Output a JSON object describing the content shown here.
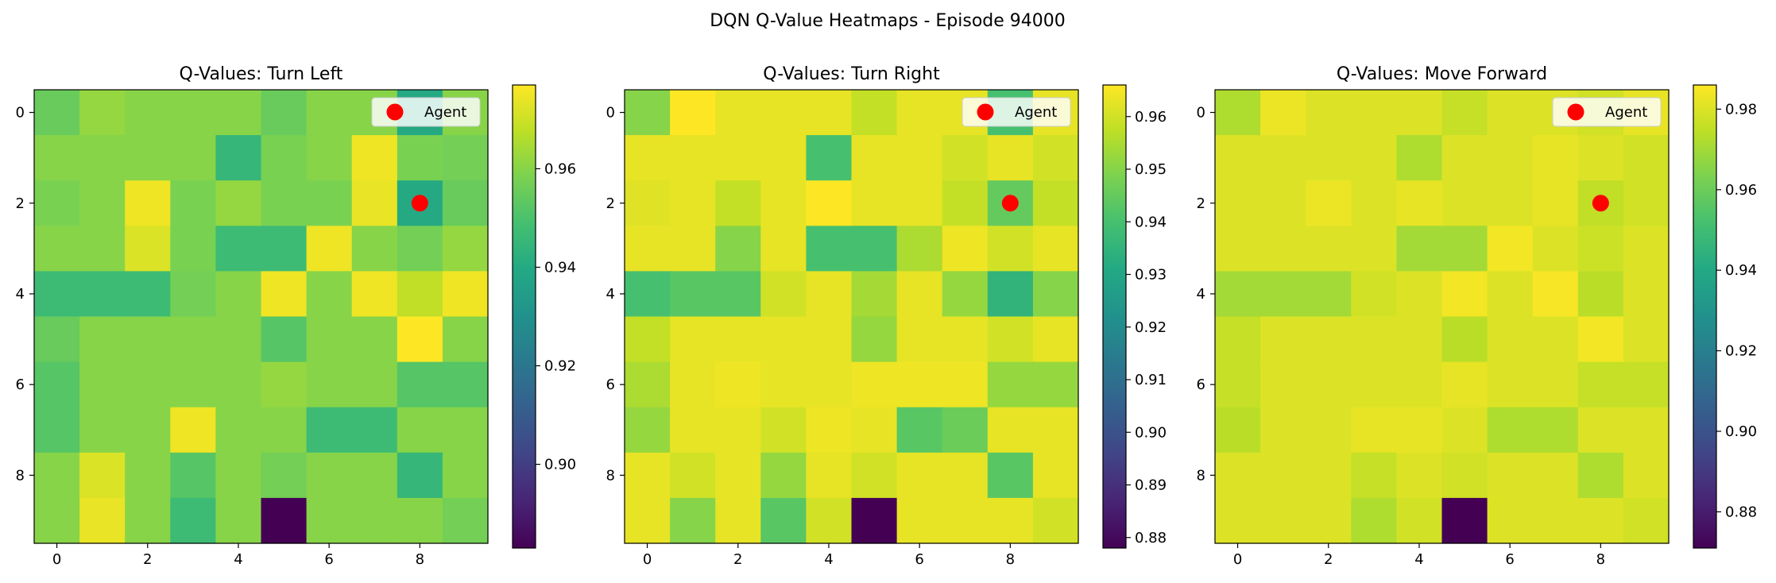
{
  "figure": {
    "suptitle": "DQN Q-Value Heatmaps - Episode 94000",
    "colormap": "viridis",
    "agent_color": "#ff0000",
    "tick_color": "#000000"
  },
  "chart_data": [
    {
      "type": "heatmap",
      "title": "Q-Values: Turn Left",
      "legend": {
        "label": "Agent",
        "placement": "top-right"
      },
      "agent": {
        "x": 8,
        "y": 2
      },
      "xticks": [
        0,
        2,
        4,
        6,
        8
      ],
      "yticks": [
        0,
        2,
        4,
        6,
        8
      ],
      "colorbar": {
        "min": 0.883,
        "max": 0.977,
        "ticks": [
          0.9,
          0.92,
          0.94,
          0.96
        ]
      },
      "grid": false,
      "values": [
        [
          0.955,
          0.962,
          0.96,
          0.96,
          0.96,
          0.955,
          0.96,
          0.96,
          0.94,
          0.96
        ],
        [
          0.96,
          0.96,
          0.96,
          0.96,
          0.945,
          0.958,
          0.96,
          0.975,
          0.958,
          0.957
        ],
        [
          0.958,
          0.96,
          0.975,
          0.958,
          0.962,
          0.958,
          0.958,
          0.974,
          0.94,
          0.955
        ],
        [
          0.96,
          0.96,
          0.972,
          0.958,
          0.947,
          0.947,
          0.975,
          0.96,
          0.957,
          0.962
        ],
        [
          0.947,
          0.947,
          0.947,
          0.957,
          0.96,
          0.975,
          0.96,
          0.975,
          0.968,
          0.975
        ],
        [
          0.955,
          0.96,
          0.96,
          0.96,
          0.96,
          0.952,
          0.96,
          0.96,
          0.977,
          0.96
        ],
        [
          0.952,
          0.96,
          0.96,
          0.96,
          0.96,
          0.962,
          0.96,
          0.96,
          0.952,
          0.952
        ],
        [
          0.952,
          0.96,
          0.96,
          0.975,
          0.96,
          0.96,
          0.947,
          0.947,
          0.96,
          0.96
        ],
        [
          0.96,
          0.972,
          0.96,
          0.952,
          0.96,
          0.957,
          0.96,
          0.96,
          0.945,
          0.96
        ],
        [
          0.96,
          0.974,
          0.96,
          0.947,
          0.96,
          0.883,
          0.96,
          0.96,
          0.96,
          0.957
        ]
      ]
    },
    {
      "type": "heatmap",
      "title": "Q-Values: Turn Right",
      "legend": {
        "label": "Agent",
        "placement": "top-right"
      },
      "agent": {
        "x": 8,
        "y": 2
      },
      "xticks": [
        0,
        2,
        4,
        6,
        8
      ],
      "yticks": [
        0,
        2,
        4,
        6,
        8
      ],
      "colorbar": {
        "min": 0.878,
        "max": 0.966,
        "ticks": [
          0.88,
          0.89,
          0.9,
          0.91,
          0.92,
          0.93,
          0.94,
          0.95,
          0.96
        ]
      },
      "grid": false,
      "values": [
        [
          0.95,
          0.966,
          0.963,
          0.963,
          0.963,
          0.958,
          0.963,
          0.963,
          0.94,
          0.963
        ],
        [
          0.963,
          0.963,
          0.963,
          0.963,
          0.94,
          0.963,
          0.963,
          0.96,
          0.963,
          0.96
        ],
        [
          0.962,
          0.963,
          0.958,
          0.963,
          0.966,
          0.963,
          0.963,
          0.958,
          0.945,
          0.958
        ],
        [
          0.963,
          0.963,
          0.95,
          0.963,
          0.94,
          0.94,
          0.955,
          0.964,
          0.96,
          0.963
        ],
        [
          0.94,
          0.943,
          0.943,
          0.96,
          0.963,
          0.954,
          0.963,
          0.952,
          0.935,
          0.95
        ],
        [
          0.958,
          0.963,
          0.963,
          0.963,
          0.963,
          0.952,
          0.963,
          0.963,
          0.96,
          0.963
        ],
        [
          0.955,
          0.963,
          0.964,
          0.963,
          0.963,
          0.964,
          0.964,
          0.964,
          0.952,
          0.952
        ],
        [
          0.952,
          0.963,
          0.963,
          0.96,
          0.964,
          0.963,
          0.943,
          0.946,
          0.963,
          0.963
        ],
        [
          0.963,
          0.96,
          0.963,
          0.952,
          0.963,
          0.96,
          0.963,
          0.963,
          0.943,
          0.963
        ],
        [
          0.963,
          0.95,
          0.963,
          0.943,
          0.96,
          0.878,
          0.963,
          0.963,
          0.963,
          0.96
        ]
      ]
    },
    {
      "type": "heatmap",
      "title": "Q-Values: Move Forward",
      "legend": {
        "label": "Agent",
        "placement": "top-right"
      },
      "agent": {
        "x": 8,
        "y": 2
      },
      "xticks": [
        0,
        2,
        4,
        6,
        8
      ],
      "yticks": [
        0,
        2,
        4,
        6,
        8
      ],
      "colorbar": {
        "min": 0.871,
        "max": 0.986,
        "ticks": [
          0.88,
          0.9,
          0.92,
          0.94,
          0.96,
          0.98
        ]
      },
      "grid": false,
      "values": [
        [
          0.972,
          0.983,
          0.98,
          0.98,
          0.98,
          0.976,
          0.98,
          0.98,
          0.978,
          0.982
        ],
        [
          0.98,
          0.98,
          0.98,
          0.98,
          0.972,
          0.98,
          0.98,
          0.982,
          0.98,
          0.978
        ],
        [
          0.98,
          0.98,
          0.983,
          0.98,
          0.982,
          0.98,
          0.98,
          0.982,
          0.975,
          0.978
        ],
        [
          0.98,
          0.98,
          0.98,
          0.98,
          0.97,
          0.97,
          0.984,
          0.98,
          0.977,
          0.98
        ],
        [
          0.97,
          0.97,
          0.97,
          0.978,
          0.98,
          0.984,
          0.98,
          0.985,
          0.974,
          0.98
        ],
        [
          0.976,
          0.98,
          0.98,
          0.98,
          0.98,
          0.974,
          0.98,
          0.98,
          0.984,
          0.98
        ],
        [
          0.976,
          0.98,
          0.98,
          0.98,
          0.98,
          0.982,
          0.98,
          0.98,
          0.976,
          0.976
        ],
        [
          0.974,
          0.98,
          0.98,
          0.982,
          0.982,
          0.98,
          0.972,
          0.972,
          0.98,
          0.98
        ],
        [
          0.98,
          0.98,
          0.98,
          0.976,
          0.98,
          0.978,
          0.98,
          0.98,
          0.972,
          0.98
        ],
        [
          0.98,
          0.98,
          0.98,
          0.972,
          0.978,
          0.871,
          0.98,
          0.98,
          0.98,
          0.978
        ]
      ]
    }
  ]
}
